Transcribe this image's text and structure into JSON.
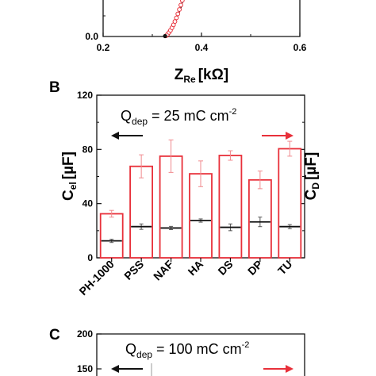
{
  "panels": {
    "B": {
      "label": "B"
    },
    "C": {
      "label": "C"
    }
  },
  "colors": {
    "red": "#e8303a",
    "black": "#111111",
    "grey": "#555555",
    "errorRed": "#f08a8e"
  },
  "chart_data": [
    {
      "type": "scatter",
      "panel": "A (partial)",
      "xlabel_main": "Z",
      "xlabel_sub": "Re",
      "xlabel_unit": "[kΩ]",
      "xlim": [
        0.2,
        0.6
      ],
      "xticks": [
        "0.2",
        "0.4",
        "0.6"
      ],
      "yticks": [
        "0.0"
      ],
      "series": [
        {
          "marker": "open-red-circle",
          "x": [
            0.328,
            0.331,
            0.334,
            0.337,
            0.34,
            0.343,
            0.346,
            0.349,
            0.352,
            0.355,
            0.358,
            0.361
          ],
          "y": [
            0.004,
            0.012,
            0.022,
            0.034,
            0.048,
            0.064,
            0.082,
            0.102,
            0.124,
            0.148,
            0.172,
            0.198
          ]
        },
        {
          "marker": "black-line",
          "x": [
            0.325,
            0.33,
            0.335,
            0.34,
            0.346,
            0.352,
            0.358,
            0.362
          ],
          "y": [
            0.0,
            0.01,
            0.026,
            0.048,
            0.078,
            0.114,
            0.156,
            0.198
          ]
        }
      ]
    },
    {
      "type": "bar",
      "panel": "B",
      "annotation": "Q",
      "annotation_sub": "dep",
      "annotation_rest": "= 25 mC cm",
      "annotation_sup": "-2",
      "ylabel_left_main": "C",
      "ylabel_left_sub": "el",
      "ylabel_left_unit": "[µF]",
      "ylabel_right_main": "C",
      "ylabel_right_sub": "D",
      "ylabel_right_unit": "[µF]",
      "ylim": [
        0,
        120
      ],
      "yticks": [
        "0",
        "40",
        "80",
        "120"
      ],
      "categories": [
        "PH-1000",
        "PSS",
        "NAF",
        "HA",
        "DS",
        "DP",
        "TU"
      ],
      "series": [
        {
          "role": "CD-bars",
          "values": [
            32.5,
            67.5,
            75,
            62,
            75.5,
            57.5,
            80.5
          ],
          "errors": [
            2.5,
            8.5,
            12,
            9.5,
            3.5,
            6.5,
            5.5
          ]
        },
        {
          "role": "Cel-lines",
          "values": [
            12.5,
            23,
            22,
            27.5,
            22.5,
            26.5,
            23
          ],
          "errors": [
            1.2,
            2,
            1.2,
            1.2,
            2.5,
            3.5,
            1.5
          ]
        }
      ]
    },
    {
      "type": "bar",
      "panel": "C (partial)",
      "annotation": "Q",
      "annotation_sub": "dep",
      "annotation_rest": "= 100 mC cm",
      "annotation_sup": "-2",
      "ylim": [
        0,
        200
      ],
      "yticks": [
        "150",
        "200"
      ]
    }
  ]
}
